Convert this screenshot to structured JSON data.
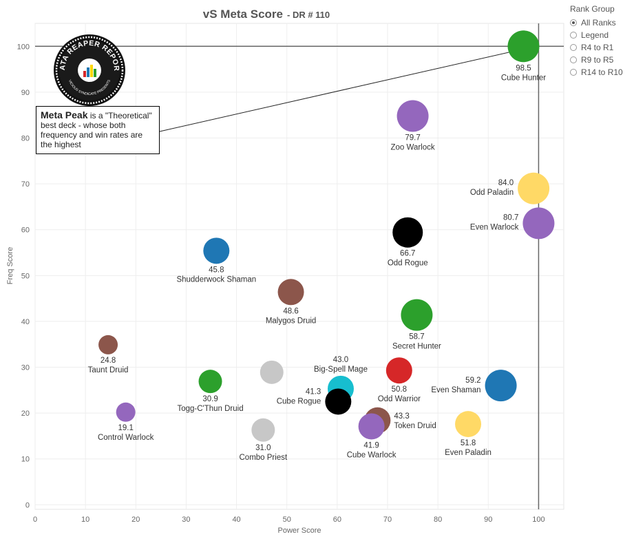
{
  "chart_data": {
    "type": "scatter",
    "title": "vS Meta Score",
    "subtitle": "- DR # 110",
    "xlabel": "Power Score",
    "ylabel": "Freq Score",
    "xlim": [
      0,
      105
    ],
    "ylim": [
      -1,
      105
    ],
    "xticks": [
      0,
      10,
      20,
      30,
      40,
      50,
      60,
      70,
      80,
      90,
      100
    ],
    "yticks": [
      0,
      10,
      20,
      30,
      40,
      50,
      60,
      70,
      80,
      90,
      100
    ],
    "grid": true,
    "reference_lines": {
      "x": 100,
      "y": 100
    },
    "points": [
      {
        "name": "Cube Hunter",
        "score": "98.5",
        "x": 97.0,
        "y": 100.0,
        "color": "#2ca02c",
        "label_pos": "below"
      },
      {
        "name": "Zoo Warlock",
        "score": "79.7",
        "x": 75.0,
        "y": 84.8,
        "color": "#9467bd",
        "label_pos": "below"
      },
      {
        "name": "Odd Paladin",
        "score": "84.0",
        "x": 99.0,
        "y": 69.0,
        "color": "#ffd966",
        "label_pos": "left"
      },
      {
        "name": "Even Warlock",
        "score": "80.7",
        "x": 100.0,
        "y": 61.4,
        "color": "#9467bd",
        "label_pos": "left"
      },
      {
        "name": "Odd Rogue",
        "score": "66.7",
        "x": 74.0,
        "y": 59.4,
        "color": "#000000",
        "label_pos": "below"
      },
      {
        "name": "Shudderwock Shaman",
        "score": "45.8",
        "x": 36.0,
        "y": 55.4,
        "color": "#1f77b4",
        "label_pos": "below"
      },
      {
        "name": "Malygos Druid",
        "score": "48.6",
        "x": 50.8,
        "y": 46.4,
        "color": "#8c564b",
        "label_pos": "below"
      },
      {
        "name": "Secret Hunter",
        "score": "58.7",
        "x": 75.8,
        "y": 41.4,
        "color": "#2ca02c",
        "label_pos": "below"
      },
      {
        "name": "Taunt Druid",
        "score": "24.8",
        "x": 14.5,
        "y": 34.9,
        "color": "#8c564b",
        "label_pos": "below"
      },
      {
        "name": "",
        "score": "",
        "x": 47.0,
        "y": 28.9,
        "color": "#c7c7c7",
        "label_pos": "none"
      },
      {
        "name": "Odd Warrior",
        "score": "50.8",
        "x": 72.3,
        "y": 29.3,
        "color": "#d62728",
        "label_pos": "below"
      },
      {
        "name": "Togg-C'Thun Druid",
        "score": "30.9",
        "x": 34.8,
        "y": 26.9,
        "color": "#2ca02c",
        "label_pos": "below"
      },
      {
        "name": "Even Shaman",
        "score": "59.2",
        "x": 92.5,
        "y": 26.0,
        "color": "#1f77b4",
        "label_pos": "left"
      },
      {
        "name": "Big-Spell Mage",
        "score": "43.0",
        "x": 60.7,
        "y": 25.3,
        "color": "#17becf",
        "label_pos": "above"
      },
      {
        "name": "Cube Rogue",
        "score": "41.3",
        "x": 60.2,
        "y": 22.5,
        "color": "#000000",
        "label_pos": "left"
      },
      {
        "name": "Control Warlock",
        "score": "19.1",
        "x": 18.0,
        "y": 20.2,
        "color": "#9467bd",
        "label_pos": "below"
      },
      {
        "name": "Token Druid",
        "score": "43.3",
        "x": 68.0,
        "y": 18.4,
        "color": "#8c564b",
        "label_pos": "right"
      },
      {
        "name": "Even Paladin",
        "score": "51.8",
        "x": 86.0,
        "y": 17.6,
        "color": "#ffd966",
        "label_pos": "below"
      },
      {
        "name": "Cube Warlock",
        "score": "41.9",
        "x": 66.8,
        "y": 17.1,
        "color": "#9467bd",
        "label_pos": "below"
      },
      {
        "name": "Combo Priest",
        "score": "31.0",
        "x": 45.3,
        "y": 16.3,
        "color": "#c7c7c7",
        "label_pos": "below"
      }
    ]
  },
  "annotation": {
    "heading": "Meta Peak",
    "text": " is a \"Theoretical\" best deck - whose both frequency and win rates are the highest"
  },
  "legend": {
    "title": "Rank Group",
    "options": [
      {
        "label": "All Ranks",
        "selected": true
      },
      {
        "label": "Legend",
        "selected": false
      },
      {
        "label": "R4 to R1",
        "selected": false
      },
      {
        "label": "R9 to R5",
        "selected": false
      },
      {
        "label": "R14 to R10",
        "selected": false
      }
    ]
  },
  "logo": {
    "top_text": "DATA REAPER REPORT",
    "bottom_text": "VICIOUS SYNDICATE PRESENTS"
  }
}
